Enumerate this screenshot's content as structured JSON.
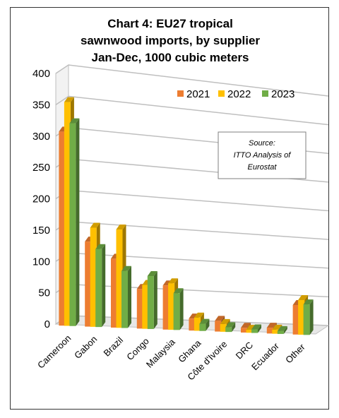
{
  "chart_data": {
    "type": "bar",
    "title_lines": [
      "Chart 4: EU27 tropical",
      "sawnwood imports, by supplier",
      "Jan-Dec, 1000 cubic meters"
    ],
    "categories": [
      "Cameroon",
      "Gabon",
      "Brazil",
      "Congo",
      "Malaysia",
      "Ghana",
      "Côte d'Ivoire",
      "DRC",
      "Ecuador",
      "Other"
    ],
    "series": [
      {
        "name": "2021",
        "color": "#ED7D31",
        "values": [
          310,
          137,
          112,
          65,
          73,
          20,
          18,
          8,
          10,
          51
        ]
      },
      {
        "name": "2022",
        "color": "#FFC000",
        "values": [
          358,
          160,
          160,
          72,
          77,
          22,
          13,
          5,
          7,
          60
        ]
      },
      {
        "name": "2023",
        "color": "#70AD47",
        "values": [
          325,
          126,
          93,
          87,
          61,
          12,
          8,
          6,
          5,
          53
        ]
      }
    ],
    "ylim": [
      0,
      400
    ],
    "yticks": [
      "0",
      "50",
      "100",
      "150",
      "200",
      "250",
      "300",
      "350",
      "400"
    ],
    "grid": true,
    "legend_position": "top-right",
    "annotation_lines": [
      "Source:",
      "ITTO Analysis of",
      "Eurostat"
    ]
  }
}
